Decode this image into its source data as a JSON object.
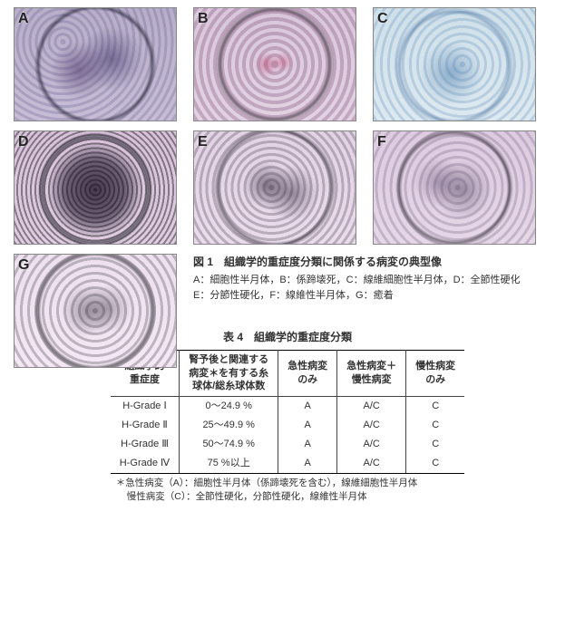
{
  "panels": {
    "A": "A",
    "B": "B",
    "C": "C",
    "D": "D",
    "E": "E",
    "F": "F",
    "G": "G"
  },
  "figure": {
    "title": "図 1　組織学的重症度分類に関係する病変の典型像",
    "line1": "A：細胞性半月体，B：係蹄壊死，C：線維細胞性半月体，D：全節性硬化",
    "line2": "E：分節性硬化，F：線維性半月体，G：癒着"
  },
  "table": {
    "title": "表 4　組織学的重症度分類",
    "headers": {
      "c1a": "組織学的",
      "c1b": "重症度",
      "c2a": "腎予後と関連する",
      "c2b": "病変＊を有する糸",
      "c2c": "球体/総糸球体数",
      "c3a": "急性病変",
      "c3b": "のみ",
      "c4a": "急性病変＋",
      "c4b": "慢性病変",
      "c5a": "慢性病変",
      "c5b": "のみ"
    },
    "rows": [
      {
        "grade": "H-Grade Ⅰ",
        "pct": "0～24.9 %",
        "acute": "A",
        "mixed": "A/C",
        "chronic": "C"
      },
      {
        "grade": "H-Grade Ⅱ",
        "pct": "25～49.9 %",
        "acute": "A",
        "mixed": "A/C",
        "chronic": "C"
      },
      {
        "grade": "H-Grade Ⅲ",
        "pct": "50～74.9 %",
        "acute": "A",
        "mixed": "A/C",
        "chronic": "C"
      },
      {
        "grade": "H-Grade Ⅳ",
        "pct": "75 %以上",
        "acute": "A",
        "mixed": "A/C",
        "chronic": "C"
      }
    ],
    "footnote_l1": "＊急性病変（A）：細胞性半月体（係蹄壊死を含む），線維細胞性半月体",
    "footnote_l2": "慢性病変（C）：全節性硬化，分節性硬化，線維性半月体"
  }
}
